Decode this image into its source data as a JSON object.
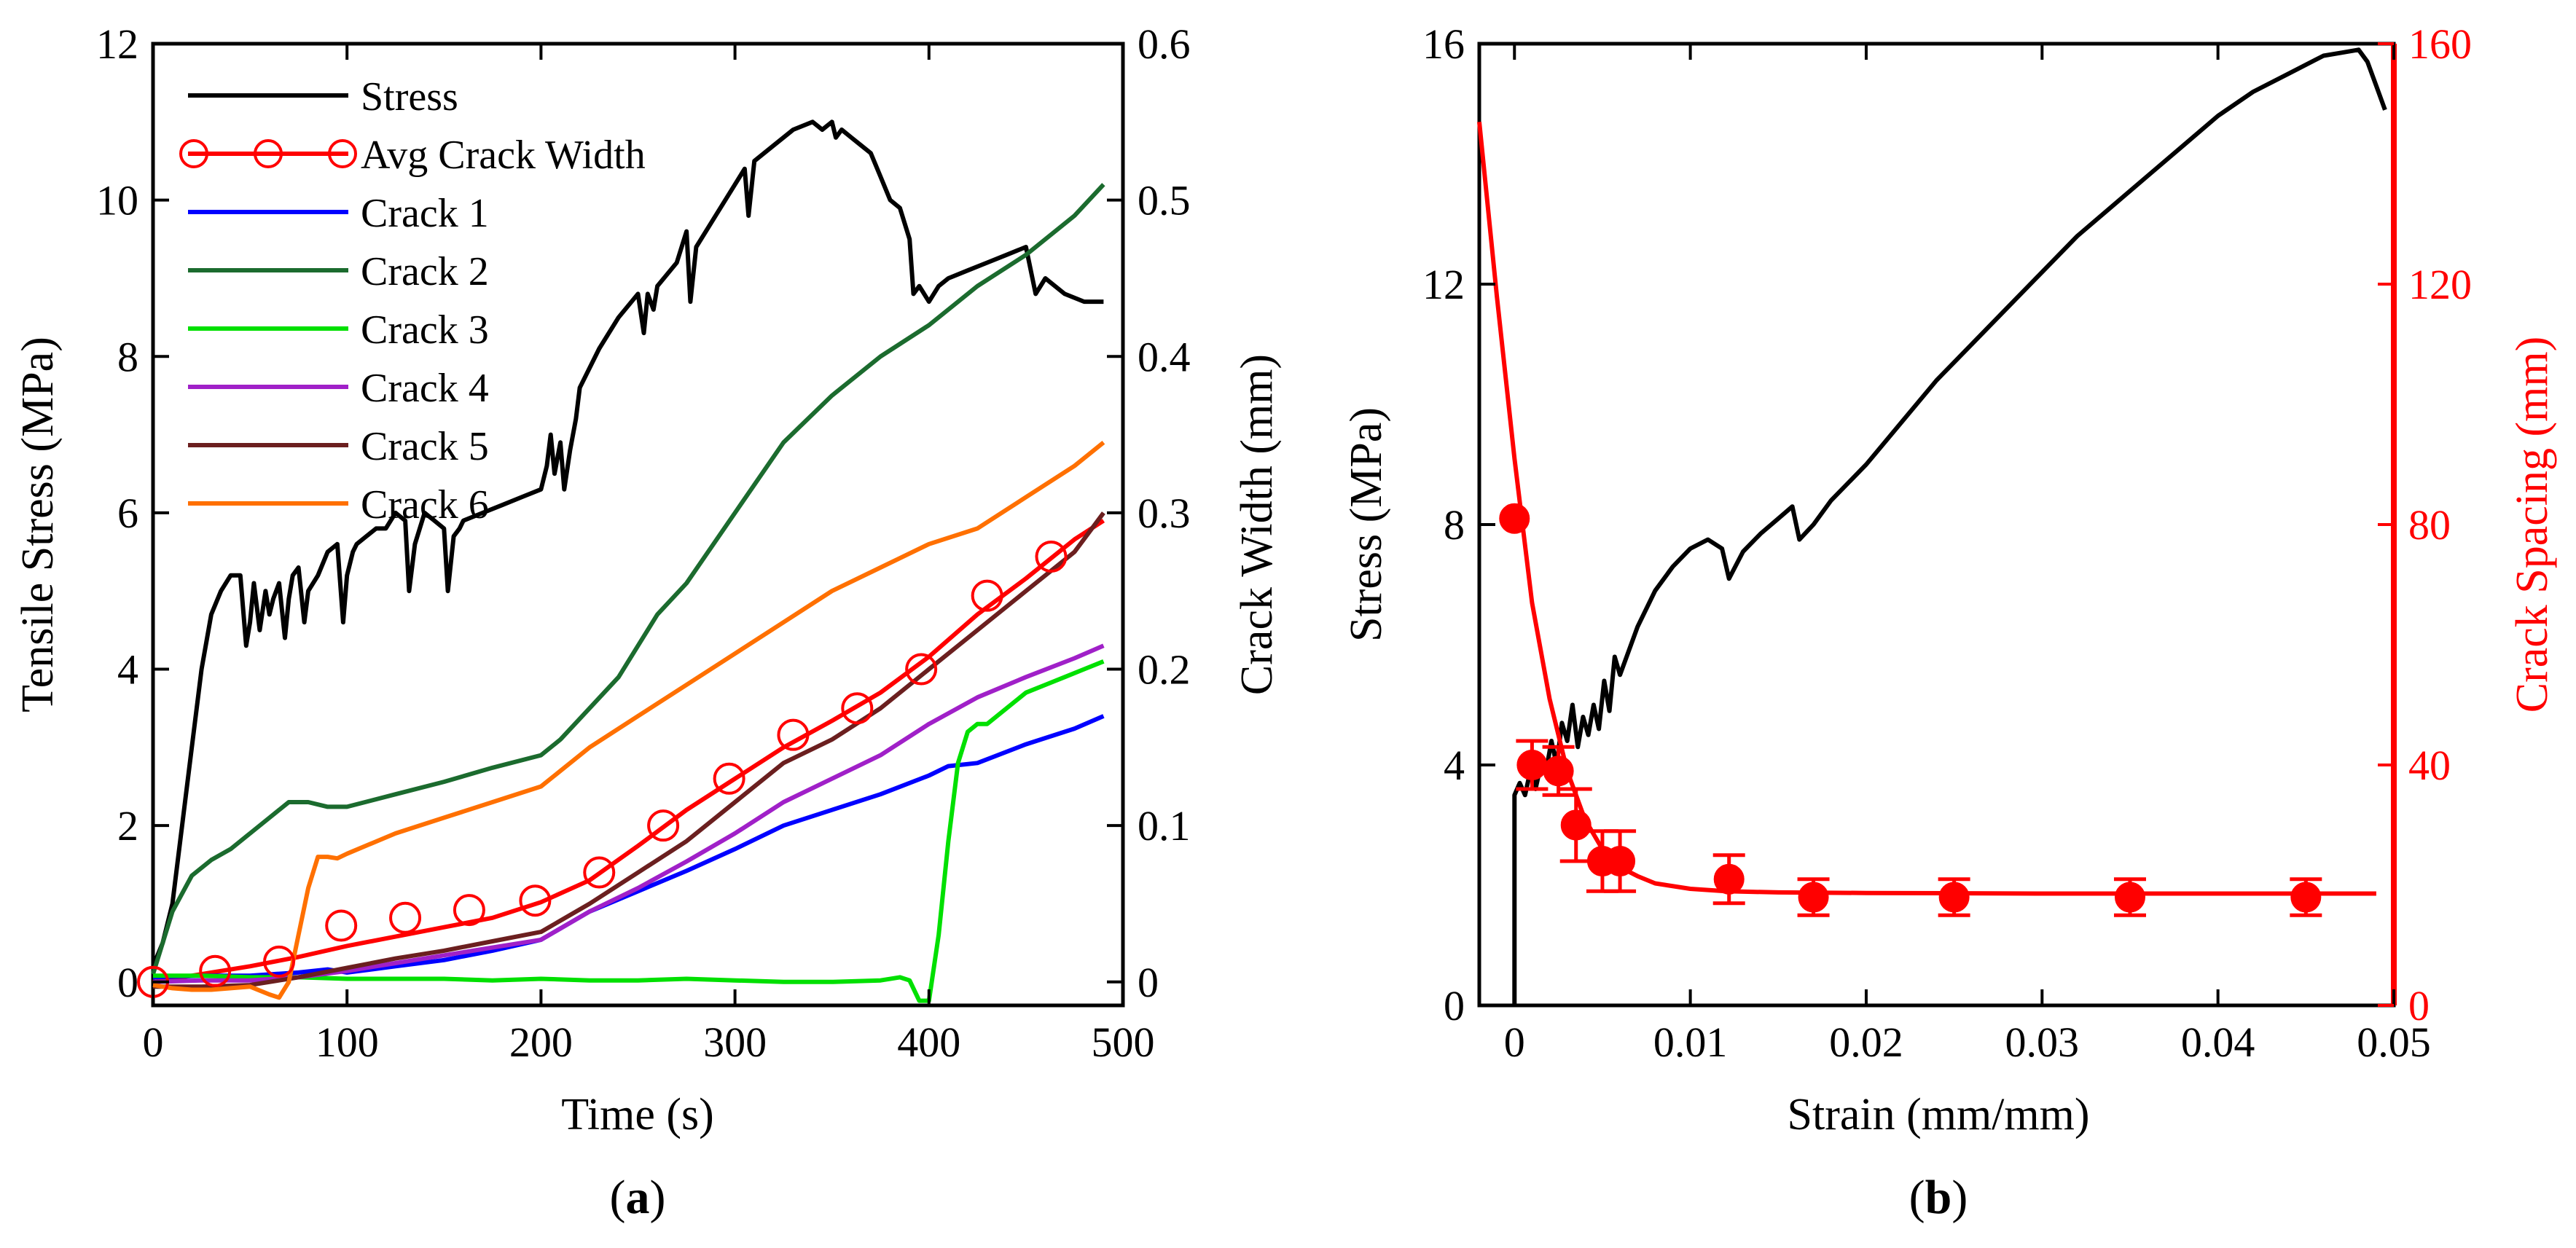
{
  "chart_data": [
    {
      "panel_label": "a",
      "type": "line",
      "xlabel": "Time (s)",
      "ylabel": "Tensile Stress (MPa)",
      "y2label": "Crack Width (mm)",
      "xlim": [
        0,
        500
      ],
      "ylim": [
        -0.3,
        12
      ],
      "y2lim": [
        -0.015,
        0.6
      ],
      "xticks": [
        "0",
        "100",
        "200",
        "300",
        "400",
        "500"
      ],
      "yticks": [
        "0",
        "2",
        "4",
        "6",
        "8",
        "10",
        "12"
      ],
      "y2ticks": [
        "0",
        "0.1",
        "0.2",
        "0.3",
        "0.4",
        "0.5",
        "0.6"
      ],
      "legend_position": "top-left",
      "series": [
        {
          "name": "Stress",
          "axis": "left",
          "color": "#000000",
          "x": [
            0,
            5,
            10,
            15,
            20,
            25,
            30,
            35,
            40,
            45,
            48,
            50,
            52,
            55,
            58,
            60,
            62,
            65,
            68,
            70,
            72,
            75,
            78,
            80,
            85,
            90,
            95,
            98,
            100,
            103,
            105,
            110,
            115,
            120,
            125,
            130,
            132,
            135,
            140,
            145,
            150,
            152,
            155,
            158,
            160,
            170,
            180,
            190,
            200,
            203,
            205,
            207,
            210,
            212,
            215,
            218,
            220,
            230,
            240,
            250,
            253,
            255,
            258,
            260,
            270,
            275,
            277,
            280,
            290,
            300,
            305,
            307,
            310,
            320,
            330,
            340,
            345,
            350,
            352,
            355,
            360,
            365,
            370,
            375,
            380,
            385,
            390,
            392,
            395,
            400,
            405,
            410,
            420,
            430,
            440,
            450,
            455,
            460,
            470,
            480,
            490
          ],
          "y": [
            0.2,
            0.5,
            1.0,
            2.0,
            3.0,
            4.0,
            4.7,
            5.0,
            5.2,
            5.2,
            4.3,
            4.6,
            5.1,
            4.5,
            5.0,
            4.7,
            4.9,
            5.1,
            4.4,
            4.9,
            5.2,
            5.3,
            4.6,
            5.0,
            5.2,
            5.5,
            5.6,
            4.6,
            5.2,
            5.5,
            5.6,
            5.7,
            5.8,
            5.8,
            6.0,
            5.9,
            5.0,
            5.6,
            6.0,
            5.9,
            5.8,
            5.0,
            5.7,
            5.8,
            5.9,
            6.0,
            6.1,
            6.2,
            6.3,
            6.6,
            7.0,
            6.5,
            6.9,
            6.3,
            6.8,
            7.2,
            7.6,
            8.1,
            8.5,
            8.8,
            8.3,
            8.8,
            8.6,
            8.9,
            9.2,
            9.6,
            8.7,
            9.4,
            9.8,
            10.2,
            10.4,
            9.8,
            10.5,
            10.7,
            10.9,
            11.0,
            10.9,
            11.0,
            10.8,
            10.9,
            10.8,
            10.7,
            10.6,
            10.3,
            10.0,
            9.9,
            9.5,
            8.8,
            8.9,
            8.7,
            8.9,
            9.0,
            9.1,
            9.2,
            9.3,
            9.4,
            8.8,
            9.0,
            8.8,
            8.7,
            8.7
          ]
        },
        {
          "name": "Avg Crack Width",
          "axis": "right",
          "color": "#ff0000",
          "marker": "open-circle",
          "x": [
            0,
            25,
            50,
            75,
            100,
            125,
            150,
            175,
            200,
            225,
            250,
            275,
            300,
            325,
            350,
            375,
            400,
            425,
            450,
            475,
            490
          ],
          "y": [
            0,
            0.005,
            0.01,
            0.016,
            0.023,
            0.029,
            0.035,
            0.041,
            0.051,
            0.065,
            0.087,
            0.11,
            0.13,
            0.15,
            0.167,
            0.185,
            0.208,
            0.235,
            0.258,
            0.283,
            0.295
          ],
          "markers_x": [
            0,
            32,
            65,
            97,
            130,
            163,
            197,
            230,
            263,
            297,
            330,
            363,
            396,
            430,
            463
          ],
          "markers_y": [
            0,
            0.007,
            0.013,
            0.036,
            0.041,
            0.046,
            0.052,
            0.07,
            0.1,
            0.13,
            0.158,
            0.175,
            0.2,
            0.247,
            0.272
          ]
        },
        {
          "name": "Crack 1",
          "axis": "right",
          "color": "#0000ff",
          "x": [
            0,
            25,
            50,
            75,
            90,
            100,
            125,
            150,
            175,
            200,
            225,
            250,
            275,
            300,
            325,
            350,
            375,
            400,
            410,
            425,
            450,
            475,
            490
          ],
          "y": [
            0.003,
            0.004,
            0.004,
            0.006,
            0.008,
            0.006,
            0.01,
            0.014,
            0.02,
            0.027,
            0.045,
            0.058,
            0.071,
            0.085,
            0.1,
            0.11,
            0.12,
            0.132,
            0.138,
            0.14,
            0.152,
            0.162,
            0.17
          ]
        },
        {
          "name": "Crack 2",
          "axis": "right",
          "color": "#1b6b2e",
          "x": [
            0,
            10,
            20,
            30,
            40,
            50,
            60,
            70,
            80,
            90,
            100,
            125,
            150,
            175,
            200,
            210,
            225,
            240,
            250,
            260,
            275,
            300,
            325,
            350,
            375,
            400,
            425,
            450,
            475,
            490
          ],
          "y": [
            0.005,
            0.045,
            0.068,
            0.078,
            0.085,
            0.095,
            0.105,
            0.115,
            0.115,
            0.112,
            0.112,
            0.12,
            0.128,
            0.137,
            0.145,
            0.155,
            0.175,
            0.195,
            0.215,
            0.235,
            0.255,
            0.3,
            0.345,
            0.375,
            0.4,
            0.42,
            0.445,
            0.465,
            0.49,
            0.51
          ]
        },
        {
          "name": "Crack 3",
          "axis": "right",
          "color": "#00e000",
          "x": [
            0,
            25,
            50,
            75,
            100,
            125,
            150,
            175,
            200,
            225,
            250,
            275,
            300,
            325,
            350,
            375,
            385,
            390,
            395,
            400,
            405,
            410,
            415,
            420,
            425,
            430,
            440,
            450,
            460,
            470,
            480,
            490
          ],
          "y": [
            0.004,
            0.004,
            0.003,
            0.003,
            0.002,
            0.002,
            0.002,
            0.001,
            0.002,
            0.001,
            0.001,
            0.002,
            0.001,
            0.0,
            0.0,
            0.001,
            0.003,
            0.001,
            -0.012,
            -0.012,
            0.03,
            0.09,
            0.14,
            0.16,
            0.165,
            0.165,
            0.175,
            0.185,
            0.19,
            0.195,
            0.2,
            0.205
          ]
        },
        {
          "name": "Crack 4",
          "axis": "right",
          "color": "#a020c8",
          "x": [
            0,
            25,
            50,
            75,
            100,
            125,
            150,
            175,
            200,
            225,
            250,
            275,
            300,
            325,
            350,
            375,
            400,
            425,
            450,
            475,
            490
          ],
          "y": [
            0.0,
            0.001,
            0.001,
            0.003,
            0.007,
            0.012,
            0.017,
            0.022,
            0.027,
            0.045,
            0.06,
            0.077,
            0.095,
            0.115,
            0.13,
            0.145,
            0.165,
            0.182,
            0.195,
            0.207,
            0.215
          ]
        },
        {
          "name": "Crack 5",
          "axis": "right",
          "color": "#6b1f1f",
          "x": [
            0,
            25,
            50,
            75,
            100,
            125,
            150,
            175,
            200,
            225,
            250,
            275,
            300,
            325,
            350,
            375,
            400,
            425,
            450,
            475,
            490
          ],
          "y": [
            -0.003,
            -0.003,
            -0.002,
            0.003,
            0.009,
            0.015,
            0.02,
            0.026,
            0.032,
            0.05,
            0.07,
            0.09,
            0.115,
            0.14,
            0.155,
            0.175,
            0.2,
            0.225,
            0.25,
            0.275,
            0.3
          ]
        },
        {
          "name": "Crack 6",
          "axis": "right",
          "color": "#ff7000",
          "x": [
            0,
            10,
            20,
            30,
            40,
            50,
            60,
            65,
            70,
            75,
            80,
            85,
            90,
            95,
            100,
            125,
            150,
            175,
            200,
            225,
            250,
            275,
            300,
            325,
            350,
            375,
            400,
            425,
            450,
            475,
            490
          ],
          "y": [
            -0.002,
            -0.004,
            -0.005,
            -0.005,
            -0.004,
            -0.003,
            -0.008,
            -0.01,
            0.0,
            0.03,
            0.06,
            0.08,
            0.08,
            0.079,
            0.082,
            0.095,
            0.105,
            0.115,
            0.125,
            0.15,
            0.17,
            0.19,
            0.21,
            0.23,
            0.25,
            0.265,
            0.28,
            0.29,
            0.31,
            0.33,
            0.345
          ]
        }
      ]
    },
    {
      "panel_label": "b",
      "type": "line",
      "xlabel": "Strain (mm/mm)",
      "ylabel": "Stress (MPa)",
      "y2label": "Crack Spacing (mm)",
      "xlim": [
        -0.002,
        0.05
      ],
      "ylim": [
        0,
        16
      ],
      "y2lim": [
        0,
        160
      ],
      "xticks": [
        "0",
        "0.01",
        "0.02",
        "0.03",
        "0.04",
        "0.05"
      ],
      "yticks": [
        "0",
        "4",
        "8",
        "12",
        "16"
      ],
      "y2ticks": [
        "0",
        "40",
        "80",
        "120",
        "160"
      ],
      "series": [
        {
          "name": "Stress",
          "axis": "left",
          "color": "#000000",
          "x": [
            0,
            0,
            0.0003,
            0.0006,
            0.0009,
            0.0012,
            0.0015,
            0.0018,
            0.0021,
            0.0024,
            0.0027,
            0.003,
            0.0033,
            0.0036,
            0.0039,
            0.0042,
            0.0045,
            0.0048,
            0.0051,
            0.0054,
            0.0057,
            0.006,
            0.007,
            0.008,
            0.009,
            0.01,
            0.011,
            0.0118,
            0.0122,
            0.013,
            0.014,
            0.015,
            0.0158,
            0.0162,
            0.017,
            0.018,
            0.019,
            0.02,
            0.022,
            0.024,
            0.026,
            0.028,
            0.03,
            0.032,
            0.034,
            0.036,
            0.038,
            0.04,
            0.042,
            0.044,
            0.046,
            0.047,
            0.048,
            0.0485,
            0.049,
            0.0495
          ],
          "y": [
            0,
            3.5,
            3.7,
            3.5,
            3.9,
            3.6,
            4.0,
            3.9,
            4.4,
            4.0,
            4.7,
            4.4,
            5.0,
            4.3,
            4.8,
            4.5,
            5.0,
            4.6,
            5.4,
            4.9,
            5.8,
            5.5,
            6.3,
            6.9,
            7.3,
            7.6,
            7.75,
            7.6,
            7.1,
            7.55,
            7.85,
            8.1,
            8.3,
            7.75,
            8.0,
            8.4,
            8.7,
            9.0,
            9.7,
            10.4,
            11.0,
            11.6,
            12.2,
            12.8,
            13.3,
            13.8,
            14.3,
            14.8,
            15.2,
            15.5,
            15.8,
            15.85,
            15.9,
            15.7,
            15.3,
            14.9
          ]
        },
        {
          "name": "Crack Spacing",
          "axis": "right",
          "color": "#ff0000",
          "fit_x": [
            -0.002,
            -0.001,
            0,
            0.001,
            0.002,
            0.003,
            0.004,
            0.005,
            0.006,
            0.007,
            0.008,
            0.01,
            0.012,
            0.015,
            0.02,
            0.03,
            0.04,
            0.049
          ],
          "fit_y": [
            147,
            118,
            91,
            67,
            51,
            39,
            31,
            26,
            23,
            21.5,
            20.3,
            19.4,
            19,
            18.8,
            18.7,
            18.6,
            18.6,
            18.6
          ],
          "points_x": [
            0,
            0.001,
            0.0025,
            0.0035,
            0.005,
            0.006,
            0.0122,
            0.017,
            0.025,
            0.035,
            0.045
          ],
          "points_y": [
            81,
            40,
            39,
            30,
            24,
            24,
            21,
            18,
            18,
            18,
            18
          ],
          "err": [
            0,
            4,
            4,
            6,
            5,
            5,
            4,
            3,
            3,
            3,
            3
          ]
        }
      ]
    }
  ]
}
